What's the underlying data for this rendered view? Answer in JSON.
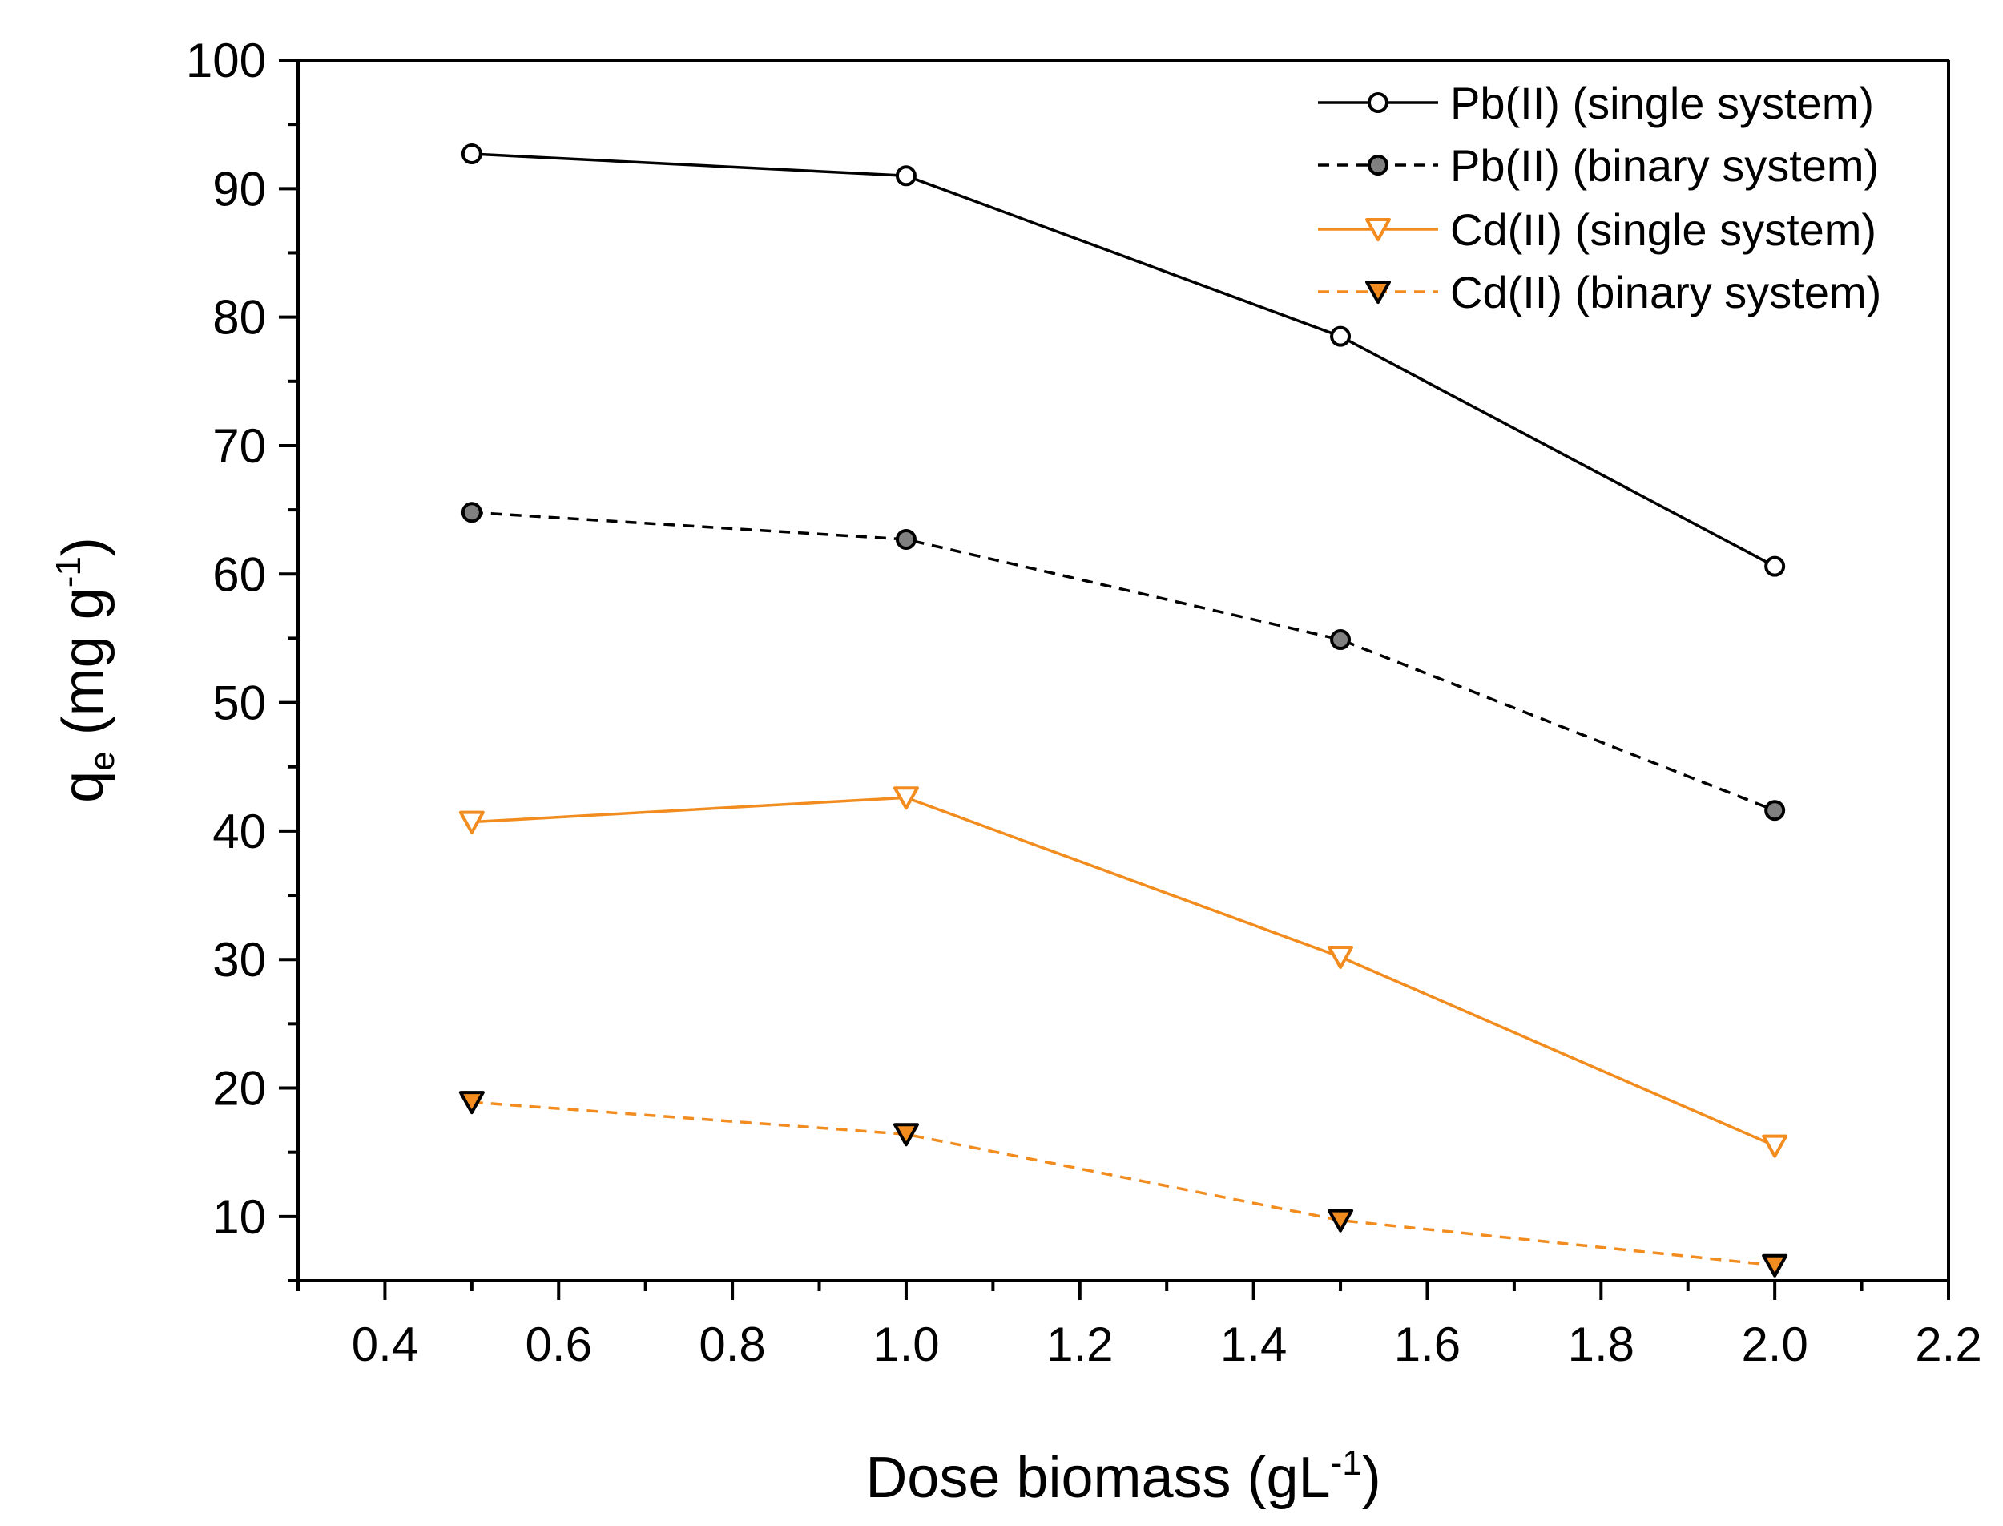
{
  "chart_data": {
    "type": "line",
    "title": "",
    "xlabel": {
      "main": "Dose biomass (gL",
      "superscript": "-1",
      "suffix": ")"
    },
    "ylabel": {
      "main": "q",
      "subscript": "e",
      "unit_main": " (mg g",
      "superscript": "-1",
      "suffix": ")"
    },
    "xlim": [
      0.3,
      2.2
    ],
    "ylim": [
      5,
      100
    ],
    "x_ticks": [
      0.4,
      0.6,
      0.8,
      1.0,
      1.2,
      1.4,
      1.6,
      1.8,
      2.0,
      2.2
    ],
    "x_tick_labels": [
      "0.4",
      "0.6",
      "0.8",
      "1.0",
      "1.2",
      "1.4",
      "1.6",
      "1.8",
      "2.0",
      "2.2"
    ],
    "y_ticks": [
      10,
      20,
      30,
      40,
      50,
      60,
      70,
      80,
      90,
      100
    ],
    "y_tick_labels": [
      "10",
      "20",
      "30",
      "40",
      "50",
      "60",
      "70",
      "80",
      "90",
      "100"
    ],
    "grid": false,
    "legend_position": "top-right",
    "x": [
      0.5,
      1.0,
      1.5,
      2.0
    ],
    "series": [
      {
        "name": "Pb(II) (single system)",
        "values": [
          92.7,
          91.0,
          78.5,
          60.6
        ],
        "color": "#000000",
        "marker_fill": "#ffffff",
        "marker": "circle",
        "dash": "solid"
      },
      {
        "name": "Pb(II) (binary system)",
        "values": [
          64.8,
          62.7,
          54.9,
          41.6
        ],
        "color": "#000000",
        "marker_fill": "#808080",
        "marker": "circle",
        "dash": "dashed"
      },
      {
        "name": "Cd(II) (single system)",
        "values": [
          40.7,
          42.6,
          30.2,
          15.5
        ],
        "color": "#f28c1e",
        "marker_fill": "#ffffff",
        "marker": "triangle-down",
        "dash": "solid"
      },
      {
        "name": "Cd(II) (binary system)",
        "values": [
          18.9,
          16.4,
          9.7,
          6.2
        ],
        "color": "#f28c1e",
        "marker_fill": "#f28c1e",
        "marker": "triangle-down",
        "dash": "dashed"
      }
    ]
  }
}
